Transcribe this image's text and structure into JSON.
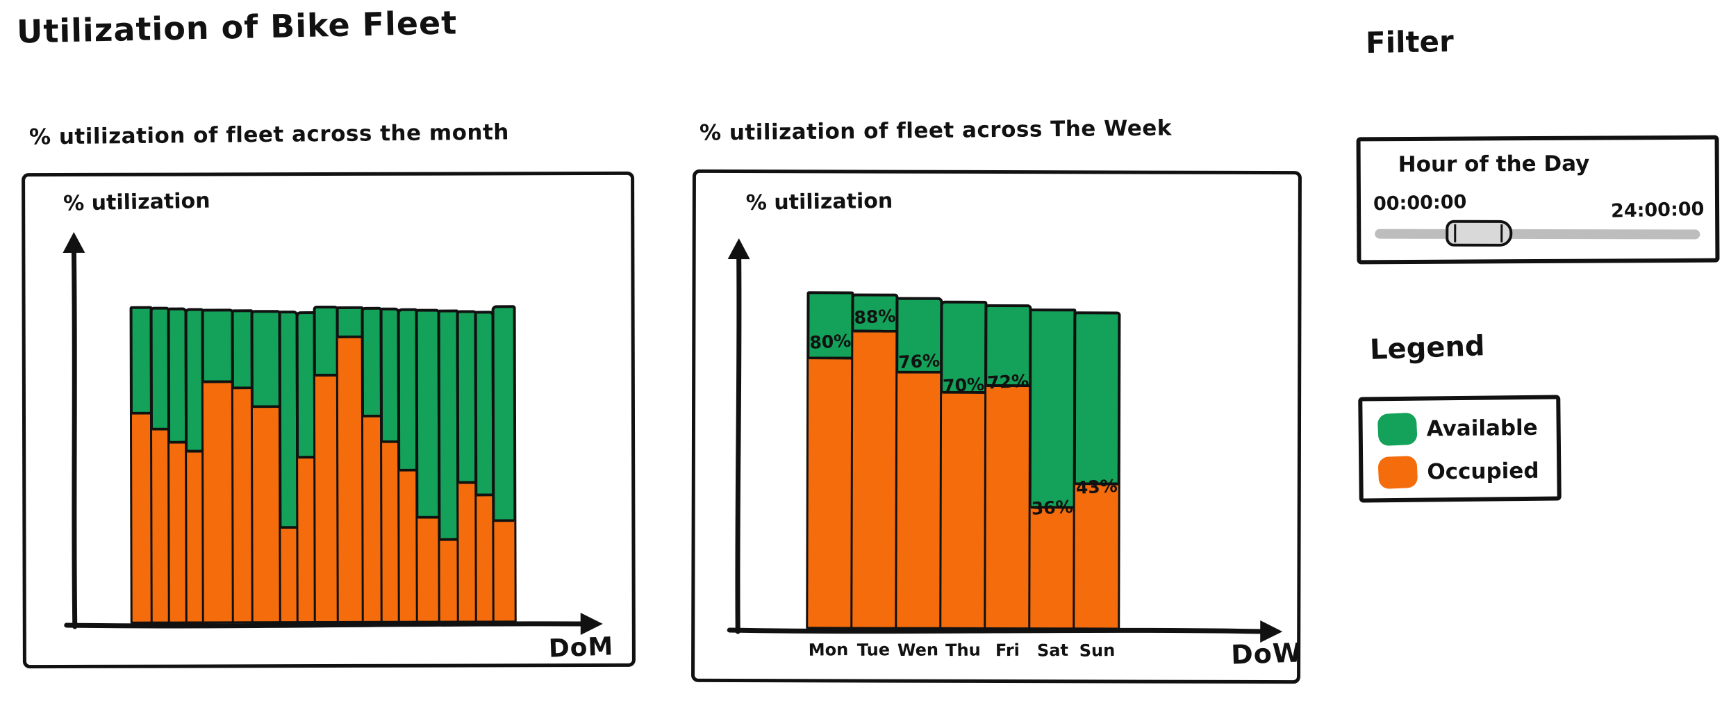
{
  "title": "Utilization of Bike Fleet",
  "colors": {
    "available": "#14A159",
    "occupied": "#F56C0D",
    "ink": "#111111",
    "slider_track": "#BDBDBD",
    "slider_handle": "#D9D9D9"
  },
  "filter": {
    "heading": "Filter",
    "control_label": "Hour of the Day",
    "min_label": "00:00:00",
    "max_label": "24:00:00",
    "handle_position_pct": 27
  },
  "legend": {
    "heading": "Legend",
    "items": [
      {
        "label": "Available",
        "color_key": "available"
      },
      {
        "label": "Occupied",
        "color_key": "occupied"
      }
    ]
  },
  "chart_data": [
    {
      "type": "bar",
      "stacked": true,
      "percent_stacked": true,
      "title": "% utilization of fleet across the month",
      "ylabel": "% utilization",
      "xlabel": "DoM",
      "ylim": [
        0,
        100
      ],
      "bar_total_pct": 100,
      "categories": [],
      "series": [
        {
          "name": "Occupied",
          "values": [
            66,
            61,
            57,
            54,
            76,
            74,
            68,
            30,
            52,
            78,
            90,
            65,
            57,
            48,
            33,
            26,
            44,
            40,
            32
          ]
        },
        {
          "name": "Available",
          "values": [
            34,
            39,
            43,
            46,
            24,
            26,
            32,
            70,
            48,
            22,
            10,
            35,
            43,
            52,
            67,
            74,
            56,
            60,
            68
          ]
        }
      ],
      "bar_width_weights": [
        1.15,
        1.0,
        0.95,
        0.95,
        1.8,
        1.15,
        1.65,
        1.0,
        0.95,
        1.35,
        1.5,
        1.05,
        1.0,
        1.0,
        1.3,
        1.1,
        1.0,
        1.0,
        1.25
      ],
      "value_labels": [],
      "legend_position": "outside-right",
      "grid": false,
      "note": "hand-drawn sketch; occupied values estimated from bar heights"
    },
    {
      "type": "bar",
      "stacked": true,
      "percent_stacked": true,
      "title": "% utilization of fleet across The Week",
      "ylabel": "% utilization",
      "xlabel": "DoW",
      "ylim": [
        0,
        100
      ],
      "bar_total_pct": 100,
      "categories": [
        "Mon",
        "Tue",
        "Wen",
        "Thu",
        "Fri",
        "Sat",
        "Sun"
      ],
      "series": [
        {
          "name": "Occupied",
          "values": [
            80,
            88,
            76,
            70,
            72,
            36,
            43
          ]
        },
        {
          "name": "Available",
          "values": [
            20,
            12,
            24,
            30,
            28,
            64,
            57
          ]
        }
      ],
      "value_labels": [
        "80%",
        "88%",
        "76%",
        "70%",
        "72%",
        "36%",
        "43%"
      ],
      "legend_position": "outside-right",
      "grid": false
    }
  ]
}
